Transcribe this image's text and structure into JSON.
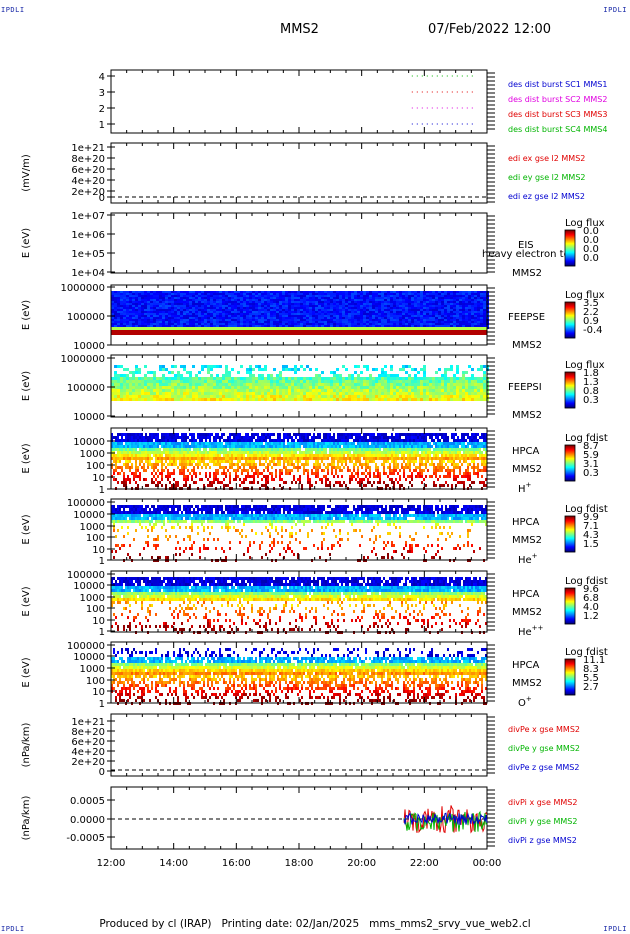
{
  "corners": {
    "top_left": "IPDLI",
    "top_right": "IPDLI",
    "bottom_left": "IPDLI",
    "bottom_right": "IPDLI"
  },
  "header": {
    "spacecraft": "MMS2",
    "datetime": "07/Feb/2022 12:00"
  },
  "footer": "Produced by cl (IRAP)   Printing date: 02/Jan/2025   mms_mms2_srvy_vue_web2.cl",
  "xaxis": {
    "ticks": [
      "12:00",
      "14:00",
      "16:00",
      "18:00",
      "20:00",
      "22:00",
      "00:00"
    ]
  },
  "colors": {
    "red": "#e00000",
    "green": "#00b400",
    "blue": "#0000d0",
    "magenta": "#e000e0",
    "darkblue": "#1a2aa8"
  },
  "panels": [
    {
      "id": "burst",
      "ylabel": "",
      "ticks": [
        "4",
        "3",
        "2",
        "1"
      ],
      "legend": [
        {
          "text": "des dist burst SC1 MMS1",
          "color": "#0000d0"
        },
        {
          "text": "des dist burst SC2 MMS2",
          "color": "#e000e0"
        },
        {
          "text": "des dist burst SC3 MMS3",
          "color": "#e00000"
        },
        {
          "text": "des dist burst SC4 MMS4",
          "color": "#00b400"
        }
      ]
    },
    {
      "id": "edi",
      "ylabel": "(mV/m)",
      "ticks": [
        "1e+21",
        "8e+20",
        "6e+20",
        "4e+20",
        "2e+20",
        "0"
      ],
      "legend": [
        {
          "text": "edi ex gse l2 MMS2",
          "color": "#e00000"
        },
        {
          "text": "edi ey gse l2 MMS2",
          "color": "#00b400"
        },
        {
          "text": "edi ez gse l2 MMS2",
          "color": "#0000d0"
        }
      ]
    },
    {
      "id": "eis",
      "ylabel": "E (eV)",
      "ticks": [
        "1e+07",
        "1e+06",
        "1e+05",
        "1e+04"
      ],
      "right": [
        "EIS",
        "heavy electron to",
        "MMS2"
      ],
      "cbar_title": "Log flux",
      "cbar_ticks": [
        "0.0",
        "0.0",
        "0.0",
        "0.0"
      ]
    },
    {
      "id": "feepse",
      "ylabel": "E (eV)",
      "ticks": [
        "1000000",
        "100000",
        "10000"
      ],
      "right": [
        "FEEPSE",
        "MMS2"
      ],
      "cbar_title": "Log flux",
      "cbar_ticks": [
        "3.5",
        "2.2",
        "0.9",
        "-0.4"
      ]
    },
    {
      "id": "feepsi",
      "ylabel": "E (eV)",
      "ticks": [
        "1000000",
        "100000",
        "10000"
      ],
      "right": [
        "FEEPSI",
        "MMS2"
      ],
      "cbar_title": "Log flux",
      "cbar_ticks": [
        "1.8",
        "1.3",
        "0.8",
        "0.3"
      ]
    },
    {
      "id": "hpca_h",
      "ylabel": "E (eV)",
      "ticks": [
        "10000",
        "1000",
        "100",
        "10",
        "1"
      ],
      "right": [
        "HPCA",
        "MMS2",
        "H+"
      ],
      "cbar_title": "Log fdist",
      "cbar_ticks": [
        "8.7",
        "5.9",
        "3.1",
        "0.3"
      ]
    },
    {
      "id": "hpca_he",
      "ylabel": "E (eV)",
      "ticks": [
        "100000",
        "10000",
        "1000",
        "100",
        "10",
        "1"
      ],
      "right": [
        "HPCA",
        "MMS2",
        "He+"
      ],
      "cbar_title": "Log fdist",
      "cbar_ticks": [
        "9.9",
        "7.1",
        "4.3",
        "1.5"
      ]
    },
    {
      "id": "hpca_hepp",
      "ylabel": "E (eV)",
      "ticks": [
        "100000",
        "10000",
        "1000",
        "100",
        "10",
        "1"
      ],
      "right": [
        "HPCA",
        "MMS2",
        "He++"
      ],
      "cbar_title": "Log fdist",
      "cbar_ticks": [
        "9.6",
        "6.8",
        "4.0",
        "1.2"
      ]
    },
    {
      "id": "hpca_o",
      "ylabel": "E (eV)",
      "ticks": [
        "100000",
        "10000",
        "1000",
        "100",
        "10",
        "1"
      ],
      "right": [
        "HPCA",
        "MMS2",
        "O+"
      ],
      "cbar_title": "Log fdist",
      "cbar_ticks": [
        "11.1",
        "8.3",
        "5.5",
        "2.7"
      ]
    },
    {
      "id": "divpe",
      "ylabel": "(nPa/km)",
      "ticks": [
        "1e+21",
        "8e+20",
        "6e+20",
        "4e+20",
        "2e+20",
        "0"
      ],
      "legend": [
        {
          "text": "divPe x gse MMS2",
          "color": "#e00000"
        },
        {
          "text": "divPe y gse MMS2",
          "color": "#00b400"
        },
        {
          "text": "divPe z gse MMS2",
          "color": "#0000d0"
        }
      ]
    },
    {
      "id": "divpi",
      "ylabel": "(nPa/km)",
      "ticks": [
        "0.0005",
        "0.0000",
        "-0.0005"
      ],
      "legend": [
        {
          "text": "divPi x gse MMS2",
          "color": "#e00000"
        },
        {
          "text": "divPi y gse MMS2",
          "color": "#00b400"
        },
        {
          "text": "divPi z gse MMS2",
          "color": "#0000d0"
        }
      ]
    }
  ],
  "chart_data": {
    "type": "heatmap",
    "title": "MMS2 07/Feb/2022 12:00",
    "xlim": [
      "12:00",
      "00:00"
    ],
    "burst_segments": [
      {
        "sc": 1,
        "from": "21:40",
        "to": "23:40"
      },
      {
        "sc": 2,
        "from": "21:40",
        "to": "23:40"
      },
      {
        "sc": 3,
        "from": "21:40",
        "to": "23:40"
      },
      {
        "sc": 4,
        "from": "21:40",
        "to": "23:40"
      }
    ],
    "divpi_data_start": "21:20"
  }
}
